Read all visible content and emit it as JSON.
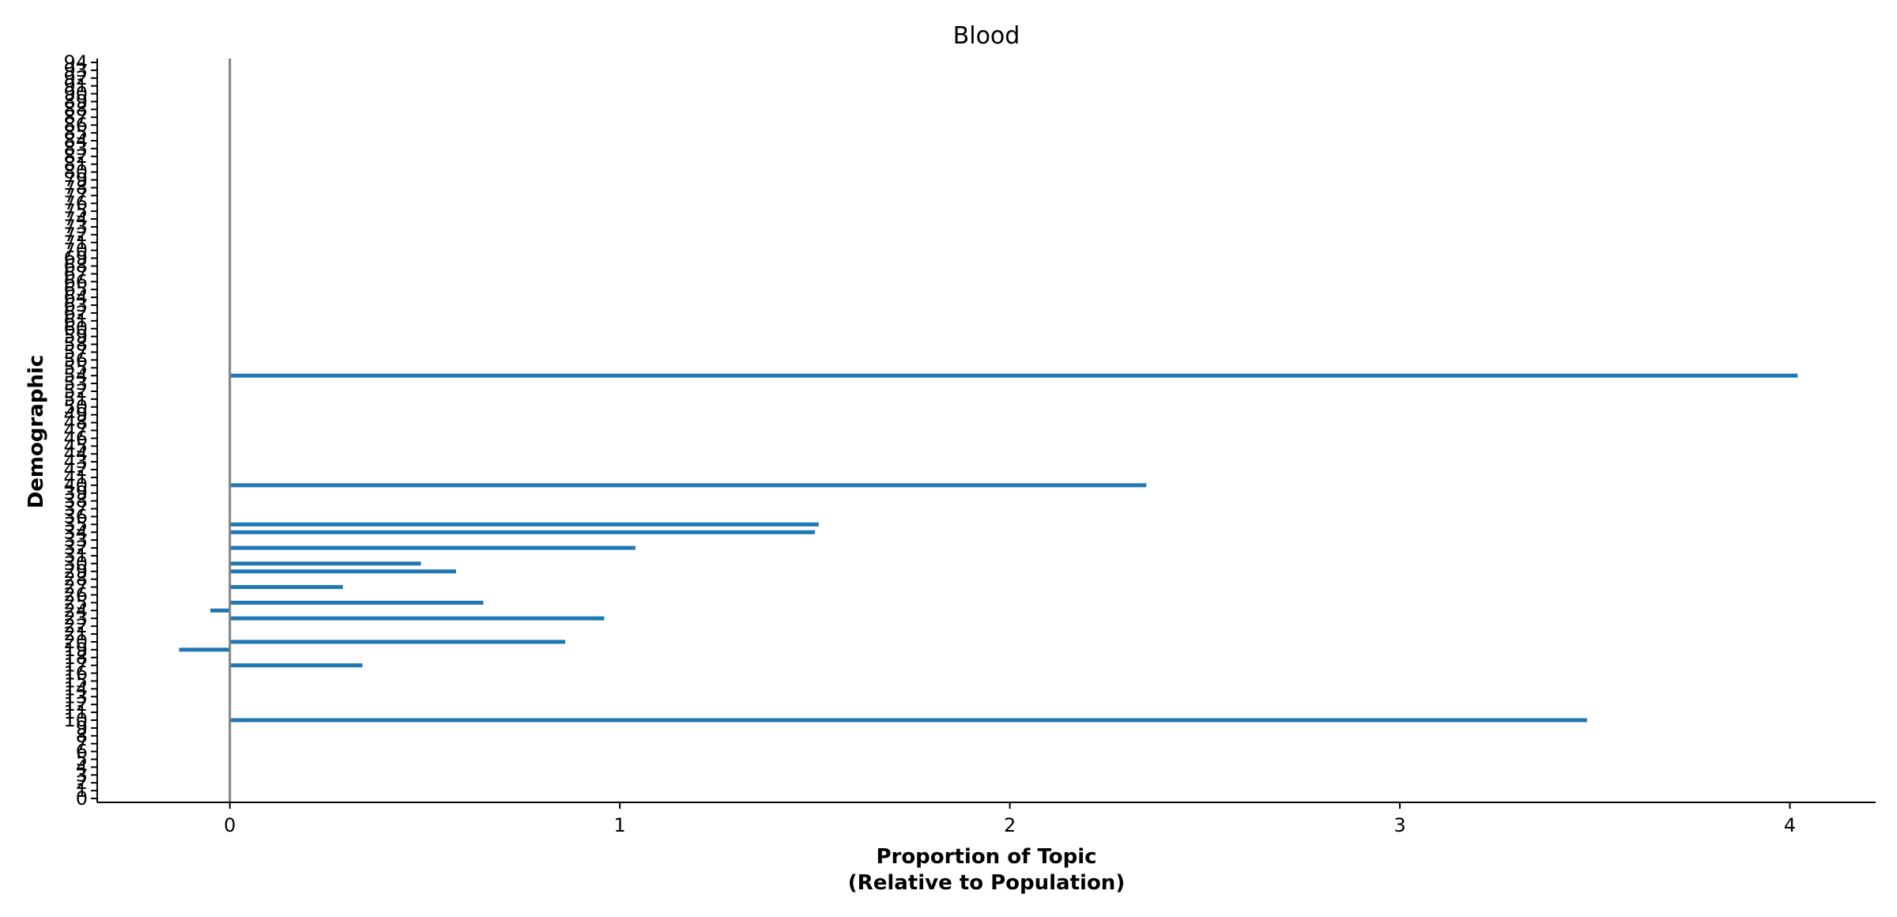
{
  "chart_data": {
    "type": "bar",
    "orientation": "horizontal",
    "title": "Blood",
    "xlabel_line1": "Proportion of Topic",
    "xlabel_line2": "(Relative to Population)",
    "ylabel": "Demographic",
    "xlim": [
      -0.34,
      4.22
    ],
    "ylim": [
      -0.5,
      94.5
    ],
    "xticks": [
      0,
      1,
      2,
      3,
      4
    ],
    "x_tick_labels": [
      "0",
      "1",
      "2",
      "3",
      "4"
    ],
    "y_tick_labels": [
      "0",
      "1",
      "2",
      "3",
      "4",
      "5",
      "6",
      "7",
      "8",
      "9",
      "10",
      "11",
      "12",
      "13",
      "14",
      "15",
      "16",
      "17",
      "18",
      "19",
      "20",
      "21",
      "22",
      "23",
      "24",
      "25",
      "26",
      "27",
      "28",
      "29",
      "30",
      "31",
      "32",
      "33",
      "34",
      "35",
      "36",
      "37",
      "38",
      "39",
      "40",
      "41",
      "42",
      "43",
      "44",
      "45",
      "46",
      "47",
      "48",
      "49",
      "50",
      "51",
      "52",
      "53",
      "54",
      "55",
      "56",
      "57",
      "58",
      "59",
      "60",
      "61",
      "62",
      "63",
      "64",
      "65",
      "66",
      "67",
      "68",
      "69",
      "70",
      "71",
      "72",
      "73",
      "74",
      "75",
      "76",
      "77",
      "78",
      "79",
      "80",
      "81",
      "82",
      "83",
      "84",
      "85",
      "86",
      "87",
      "88",
      "89",
      "90",
      "91",
      "92",
      "93",
      "94"
    ],
    "zero_line": true,
    "grid": false,
    "color": "#1f77b4",
    "zero_line_color": "#808080",
    "bars": [
      {
        "y": 10,
        "value": 3.48
      },
      {
        "y": 17,
        "value": 0.34
      },
      {
        "y": 19,
        "value": -0.13
      },
      {
        "y": 20,
        "value": 0.86
      },
      {
        "y": 23,
        "value": 0.96
      },
      {
        "y": 24,
        "value": -0.05
      },
      {
        "y": 25,
        "value": 0.65
      },
      {
        "y": 27,
        "value": 0.29
      },
      {
        "y": 29,
        "value": 0.58
      },
      {
        "y": 30,
        "value": 0.49
      },
      {
        "y": 32,
        "value": 1.04
      },
      {
        "y": 34,
        "value": 1.5
      },
      {
        "y": 35,
        "value": 1.51
      },
      {
        "y": 40,
        "value": 2.35
      },
      {
        "y": 54,
        "value": 4.02
      }
    ]
  }
}
